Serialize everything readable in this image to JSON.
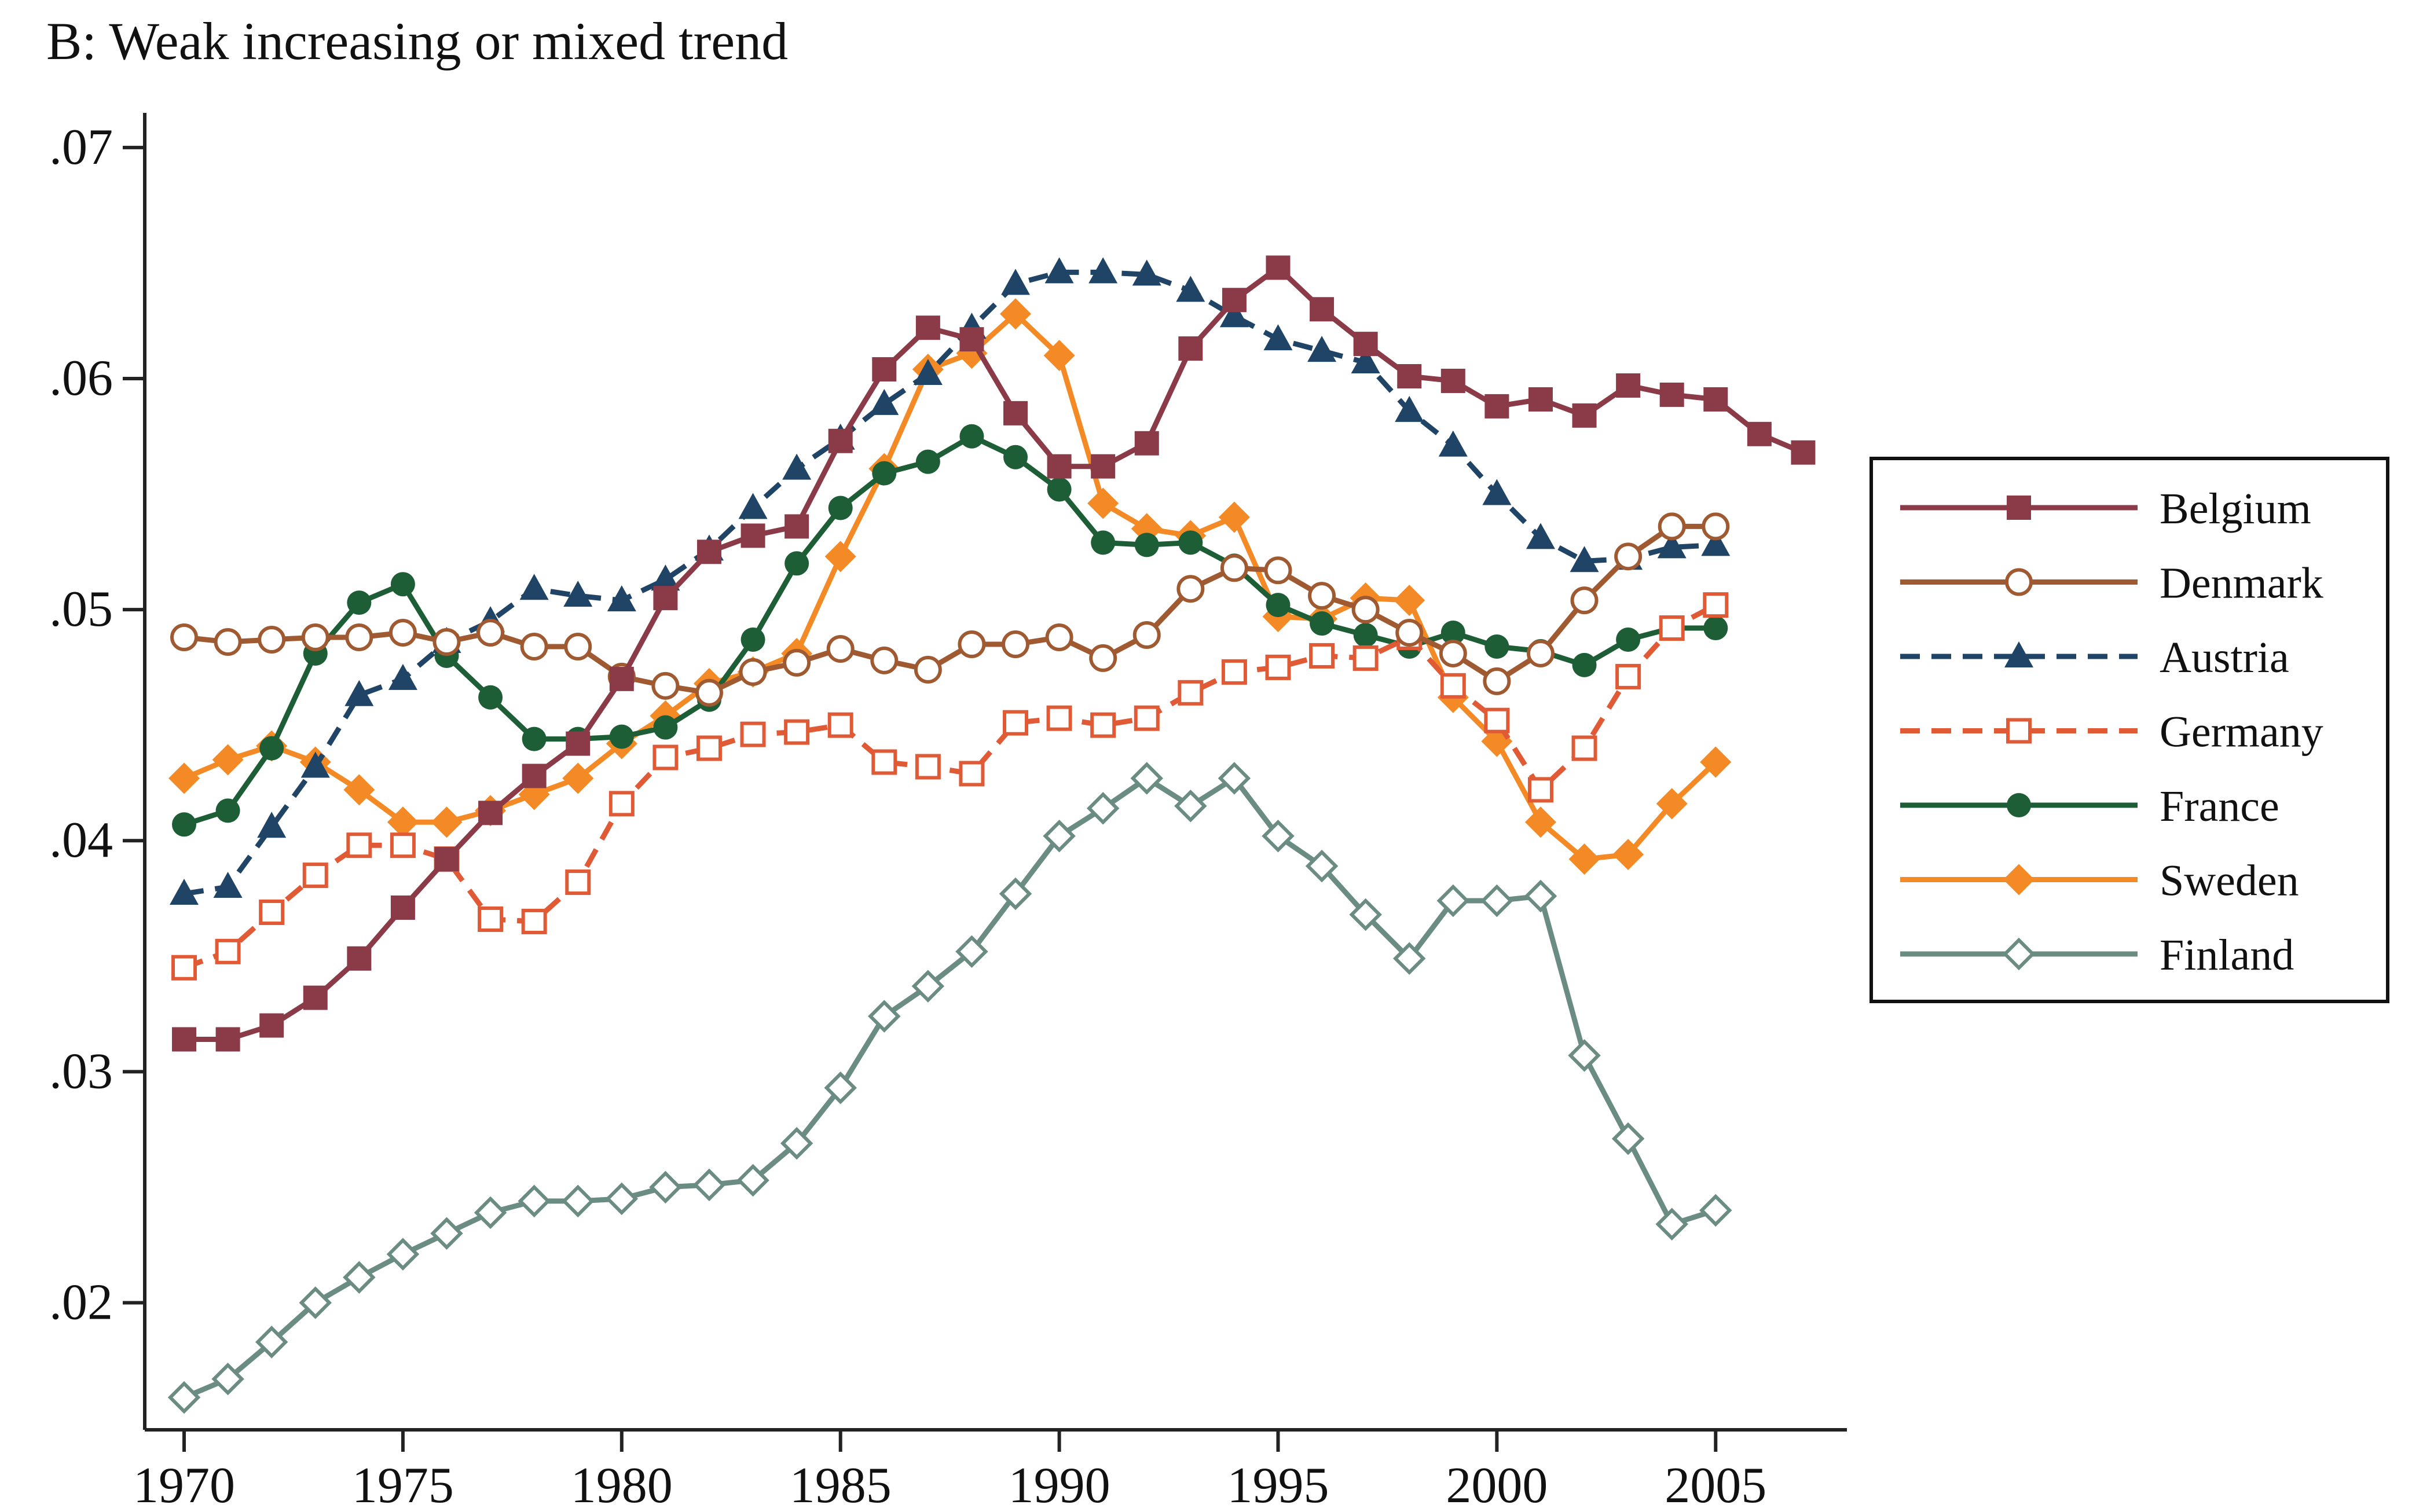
{
  "chart_data": {
    "type": "line",
    "title": "B: Weak increasing or mixed trend",
    "xlabel": "",
    "ylabel": "",
    "xlim": [
      1969.1,
      2008.0
    ],
    "ylim": [
      0.0145,
      0.0715
    ],
    "x_ticks": [
      1970,
      1975,
      1980,
      1985,
      1990,
      1995,
      2000,
      2005
    ],
    "y_ticks": [
      0.02,
      0.03,
      0.04,
      0.05,
      0.06,
      0.07
    ],
    "y_tick_labels": [
      ".02",
      ".03",
      ".04",
      ".05",
      ".06",
      ".07"
    ],
    "grid": false,
    "legend_position": "right",
    "series": [
      {
        "name": "Belgium",
        "color": "#8b3a47",
        "dash": false,
        "marker": "square-filled",
        "x": [
          1970,
          1971,
          1972,
          1973,
          1974,
          1975,
          1976,
          1977,
          1978,
          1979,
          1980,
          1981,
          1982,
          1983,
          1984,
          1985,
          1986,
          1987,
          1988,
          1989,
          1990,
          1991,
          1992,
          1993,
          1994,
          1995,
          1996,
          1997,
          1998,
          1999,
          2000,
          2001,
          2002,
          2003,
          2004,
          2005,
          2006,
          2007
        ],
        "y": [
          0.0314,
          0.0314,
          0.032,
          0.0332,
          0.0349,
          0.0371,
          0.0392,
          0.0412,
          0.0428,
          0.0442,
          0.047,
          0.0505,
          0.0525,
          0.0532,
          0.0536,
          0.0573,
          0.0604,
          0.0622,
          0.0617,
          0.0585,
          0.0562,
          0.0562,
          0.0572,
          0.0613,
          0.0634,
          0.0648,
          0.063,
          0.0615,
          0.0601,
          0.0599,
          0.0588,
          0.0591,
          0.0584,
          0.0597,
          0.0593,
          0.0591,
          0.0576,
          0.0568
        ]
      },
      {
        "name": "Denmark",
        "color": "#a05a32",
        "dash": false,
        "marker": "circle-hollow",
        "x": [
          1970,
          1971,
          1972,
          1973,
          1974,
          1975,
          1976,
          1977,
          1978,
          1979,
          1980,
          1981,
          1982,
          1983,
          1984,
          1985,
          1986,
          1987,
          1988,
          1989,
          1990,
          1991,
          1992,
          1993,
          1994,
          1995,
          1996,
          1997,
          1998,
          1999,
          2000,
          2001,
          2002,
          2003,
          2004,
          2005
        ],
        "y": [
          0.0488,
          0.0486,
          0.0487,
          0.0488,
          0.0488,
          0.049,
          0.0486,
          0.049,
          0.0484,
          0.0484,
          0.0471,
          0.0467,
          0.0464,
          0.0473,
          0.0477,
          0.0483,
          0.0478,
          0.0474,
          0.0485,
          0.0485,
          0.0488,
          0.0479,
          0.0489,
          0.0509,
          0.0518,
          0.0517,
          0.0506,
          0.05,
          0.049,
          0.0481,
          0.0469,
          0.0481,
          0.0504,
          0.0523,
          0.0536,
          0.0536
        ]
      },
      {
        "name": "Austria",
        "color": "#1f4466",
        "dash": true,
        "marker": "triangle-filled",
        "x": [
          1970,
          1971,
          1972,
          1973,
          1974,
          1975,
          1976,
          1977,
          1978,
          1979,
          1980,
          1981,
          1982,
          1983,
          1984,
          1985,
          1986,
          1987,
          1988,
          1989,
          1990,
          1991,
          1992,
          1993,
          1994,
          1995,
          1996,
          1997,
          1998,
          1999,
          2000,
          2001,
          2002,
          2003,
          2004,
          2005
        ],
        "y": [
          0.0377,
          0.038,
          0.0406,
          0.0432,
          0.0463,
          0.047,
          0.0486,
          0.0495,
          0.0509,
          0.0506,
          0.0504,
          0.0513,
          0.0526,
          0.0544,
          0.0561,
          0.0574,
          0.0589,
          0.0602,
          0.0622,
          0.0641,
          0.0646,
          0.0646,
          0.0645,
          0.0638,
          0.0627,
          0.0617,
          0.0612,
          0.0607,
          0.0586,
          0.0571,
          0.055,
          0.0531,
          0.0521,
          0.0522,
          0.0527,
          0.0528
        ]
      },
      {
        "name": "Germany",
        "color": "#e05a35",
        "dash": true,
        "marker": "square-hollow",
        "x": [
          1970,
          1971,
          1972,
          1973,
          1974,
          1975,
          1976,
          1977,
          1978,
          1979,
          1980,
          1981,
          1982,
          1983,
          1984,
          1985,
          1986,
          1987,
          1988,
          1989,
          1990,
          1991,
          1992,
          1993,
          1994,
          1995,
          1996,
          1997,
          1998,
          1999,
          2000,
          2001,
          2002,
          2003,
          2004,
          2005
        ],
        "y": [
          0.0345,
          0.0352,
          0.0369,
          0.0385,
          0.0398,
          0.0398,
          0.0392,
          0.0366,
          0.0365,
          0.0382,
          0.0416,
          0.0436,
          0.044,
          0.0446,
          0.0447,
          0.045,
          0.0434,
          0.0432,
          0.0429,
          0.0451,
          0.0453,
          0.045,
          0.0453,
          0.0464,
          0.0473,
          0.0475,
          0.048,
          0.0479,
          0.0488,
          0.0467,
          0.0452,
          0.0422,
          0.044,
          0.0471,
          0.0492,
          0.0502
        ]
      },
      {
        "name": "France",
        "color": "#1e5e36",
        "dash": false,
        "marker": "circle-filled",
        "x": [
          1970,
          1971,
          1972,
          1973,
          1974,
          1975,
          1976,
          1977,
          1978,
          1979,
          1980,
          1981,
          1982,
          1983,
          1984,
          1985,
          1986,
          1987,
          1988,
          1989,
          1990,
          1991,
          1992,
          1993,
          1994,
          1995,
          1996,
          1997,
          1998,
          1999,
          2000,
          2001,
          2002,
          2003,
          2004,
          2005
        ],
        "y": [
          0.0407,
          0.0413,
          0.044,
          0.0481,
          0.0503,
          0.0511,
          0.048,
          0.0462,
          0.0444,
          0.0444,
          0.0445,
          0.0449,
          0.0461,
          0.0487,
          0.052,
          0.0544,
          0.0559,
          0.0564,
          0.0575,
          0.0566,
          0.0552,
          0.0529,
          0.0528,
          0.0529,
          0.0519,
          0.0502,
          0.0494,
          0.0489,
          0.0484,
          0.049,
          0.0484,
          0.0482,
          0.0476,
          0.0487,
          0.0492,
          0.0492
        ]
      },
      {
        "name": "Sweden",
        "color": "#f48a25",
        "dash": false,
        "marker": "diamond-filled",
        "x": [
          1970,
          1971,
          1972,
          1973,
          1974,
          1975,
          1976,
          1977,
          1978,
          1979,
          1980,
          1981,
          1982,
          1983,
          1984,
          1985,
          1986,
          1987,
          1988,
          1989,
          1990,
          1991,
          1992,
          1993,
          1994,
          1995,
          1996,
          1997,
          1998,
          1999,
          2000,
          2001,
          2002,
          2003,
          2004,
          2005
        ],
        "y": [
          0.0427,
          0.0435,
          0.0441,
          0.0434,
          0.0422,
          0.0408,
          0.0408,
          0.0413,
          0.042,
          0.0427,
          0.0442,
          0.0454,
          0.0468,
          0.0473,
          0.0481,
          0.0523,
          0.0561,
          0.0604,
          0.0611,
          0.0628,
          0.061,
          0.0546,
          0.0535,
          0.0532,
          0.054,
          0.0497,
          0.0496,
          0.0505,
          0.0504,
          0.0462,
          0.0443,
          0.0408,
          0.0392,
          0.0394,
          0.0416,
          0.0434
        ]
      },
      {
        "name": "Finland",
        "color": "#6b8c82",
        "dash": false,
        "marker": "diamond-hollow",
        "x": [
          1970,
          1971,
          1972,
          1973,
          1974,
          1975,
          1976,
          1977,
          1978,
          1979,
          1980,
          1981,
          1982,
          1983,
          1984,
          1985,
          1986,
          1987,
          1988,
          1989,
          1990,
          1991,
          1992,
          1993,
          1994,
          1995,
          1996,
          1997,
          1998,
          1999,
          2000,
          2001,
          2002,
          2003,
          2004,
          2005
        ],
        "y": [
          0.0159,
          0.0167,
          0.0183,
          0.02,
          0.0211,
          0.0221,
          0.023,
          0.0239,
          0.0244,
          0.0244,
          0.0245,
          0.025,
          0.0251,
          0.0253,
          0.0269,
          0.0293,
          0.0324,
          0.0337,
          0.0352,
          0.0377,
          0.0402,
          0.0414,
          0.0427,
          0.0415,
          0.0427,
          0.0402,
          0.0389,
          0.0368,
          0.0349,
          0.0374,
          0.0374,
          0.0376,
          0.0307,
          0.0271,
          0.0234,
          0.024
        ]
      }
    ]
  }
}
